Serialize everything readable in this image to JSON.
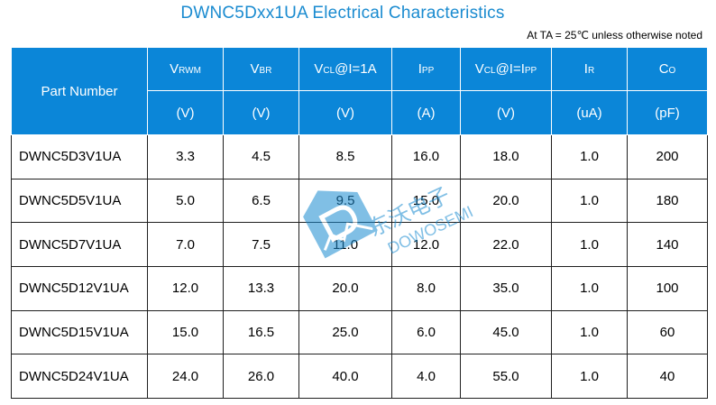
{
  "title": "DWNC5Dxx1UA Electrical Characteristics",
  "condition": "At TA = 25℃  unless otherwise noted",
  "header": {
    "part_number": "Part Number",
    "columns": [
      {
        "main": "V",
        "sub": "RWM",
        "tail": "",
        "unit": "(V)"
      },
      {
        "main": "V",
        "sub": "BR",
        "tail": "",
        "unit": "(V)"
      },
      {
        "main": "V",
        "sub": "CL",
        "tail": "@I=1A",
        "unit": "(V)"
      },
      {
        "main": "I",
        "sub": "PP",
        "tail": "",
        "unit": "(A)"
      },
      {
        "main": "V",
        "sub": "CL",
        "tail": "@I=I",
        "tail_sub": "PP",
        "unit": "(V)"
      },
      {
        "main": "I",
        "sub": "R",
        "tail": "",
        "unit": "(uA)"
      },
      {
        "main": "C",
        "sub": "O",
        "tail": "",
        "unit": "(pF)"
      }
    ]
  },
  "rows": [
    [
      "DWNC5D3V1UA",
      "3.3",
      "4.5",
      "8.5",
      "16.0",
      "18.0",
      "1.0",
      "200"
    ],
    [
      "DWNC5D5V1UA",
      "5.0",
      "6.5",
      "9.5",
      "15.0",
      "20.0",
      "1.0",
      "180"
    ],
    [
      "DWNC5D7V1UA",
      "7.0",
      "7.5",
      "11.0",
      "12.0",
      "22.0",
      "1.0",
      "140"
    ],
    [
      "DWNC5D12V1UA",
      "12.0",
      "13.3",
      "20.0",
      "8.0",
      "35.0",
      "1.0",
      "100"
    ],
    [
      "DWNC5D15V1UA",
      "15.0",
      "16.5",
      "25.0",
      "6.0",
      "45.0",
      "1.0",
      "60"
    ],
    [
      "DWNC5D24V1UA",
      "24.0",
      "26.0",
      "40.0",
      "4.0",
      "55.0",
      "1.0",
      "40"
    ]
  ],
  "watermark": {
    "cn": "东沃电子",
    "en": "DOWOSEMI"
  },
  "colors": {
    "title": "#1a8bd0",
    "header_bg": "#0b86d8",
    "header_text": "#ffffff"
  }
}
